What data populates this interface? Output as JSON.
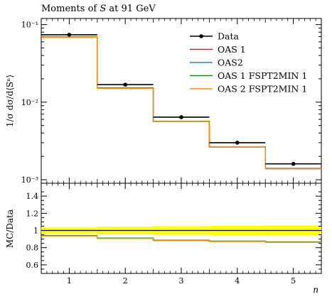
{
  "chart_data": {
    "type": "line",
    "title": "Moments of S at 91 GeV",
    "xlabel": "n",
    "ylabel": "1/σ dσ/d⟨Sⁿ⟩",
    "ratio_ylabel": "MC/Data",
    "x": [
      1,
      2,
      3,
      4,
      5
    ],
    "x_bin_edges": [
      0.5,
      1.5,
      2.5,
      3.5,
      4.5,
      5.5
    ],
    "xlim": [
      0.5,
      5.5
    ],
    "ylim": [
      0.0009,
      0.12
    ],
    "yscale": "log",
    "ratio_ylim": [
      0.5,
      1.55
    ],
    "x_ticks": [
      "1",
      "2",
      "3",
      "4",
      "5"
    ],
    "y_ticks": [
      {
        "value": 0.1,
        "label": "10⁻¹"
      },
      {
        "value": 0.01,
        "label": "10⁻²"
      },
      {
        "value": 0.001,
        "label": "10⁻³"
      }
    ],
    "ratio_ticks": [
      {
        "value": 0.6,
        "label": "0.6"
      },
      {
        "value": 0.8,
        "label": "0.8"
      },
      {
        "value": 1.0,
        "label": "1"
      },
      {
        "value": 1.2,
        "label": "1.2"
      },
      {
        "value": 1.4,
        "label": "1.4"
      }
    ],
    "data": {
      "name": "Data",
      "color": "#000000",
      "values": [
        0.074,
        0.0168,
        0.0064,
        0.003,
        0.0016
      ]
    },
    "series": [
      {
        "name": "OAS 1",
        "color": "#e41a1c",
        "values": [
          0.0695,
          0.0153,
          0.00568,
          0.00264,
          0.0014
        ]
      },
      {
        "name": "OAS2",
        "color": "#377eb8",
        "values": [
          0.0692,
          0.0152,
          0.00565,
          0.00263,
          0.00139
        ]
      },
      {
        "name": "OAS 1 FSPT2MIN 1",
        "color": "#1a8a1a",
        "values": [
          0.0693,
          0.0152,
          0.00566,
          0.00263,
          0.00139
        ]
      },
      {
        "name": "OAS 2 FSPT2MIN 1",
        "color": "#ff8c00",
        "values": [
          0.069,
          0.0151,
          0.00563,
          0.00262,
          0.00138
        ]
      }
    ],
    "ratio": {
      "band_half_width": [
        0.035,
        0.045,
        0.05,
        0.055,
        0.06
      ],
      "band_color": "#ffff00",
      "mc_values": [
        0.94,
        0.91,
        0.885,
        0.875,
        0.865
      ]
    },
    "legend_placement": "top-right",
    "grid": false
  }
}
